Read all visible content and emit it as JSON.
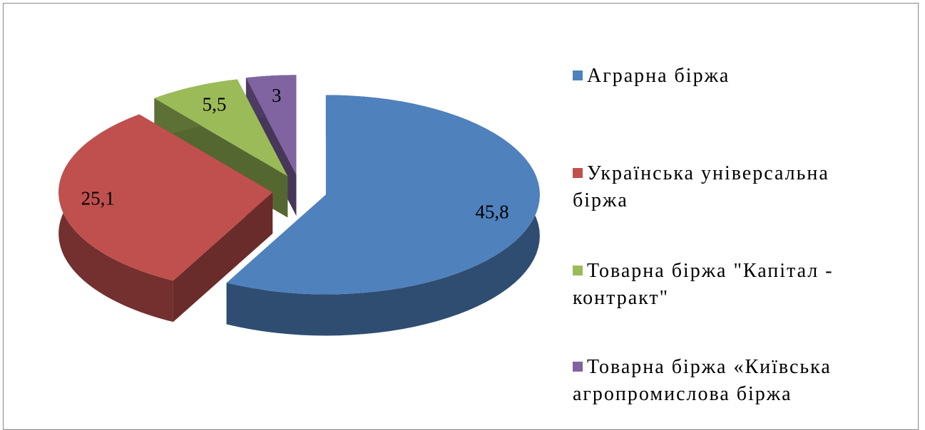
{
  "chart_data": {
    "type": "pie3d",
    "categories": [
      "Аграрна біржа",
      "Українська універсальна біржа",
      "Товарна біржа \"Капітал - контракт\"",
      "Товарна біржа «Київська агропромислова біржа"
    ],
    "values": [
      45.8,
      25.1,
      5.5,
      3
    ],
    "value_labels": [
      "45,8",
      "25,1",
      "5,5",
      "3"
    ],
    "colors": [
      "#4f81bd",
      "#c0504d",
      "#9bbb59",
      "#8064a2"
    ],
    "legend": "right"
  }
}
